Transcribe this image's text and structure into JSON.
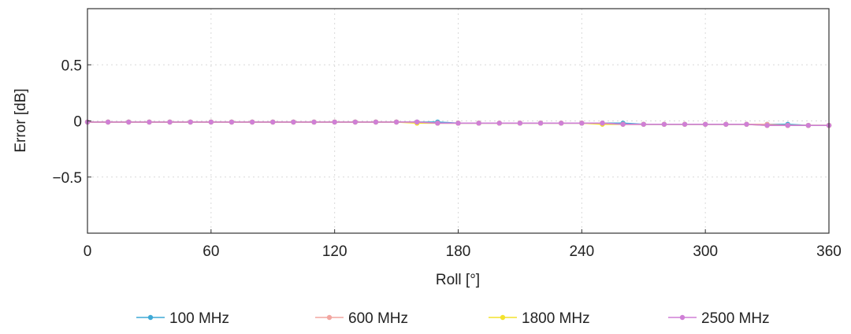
{
  "chart_data": {
    "type": "line",
    "xlabel": "Roll [°]",
    "ylabel": "Error [dB]",
    "xlim": [
      0,
      360
    ],
    "ylim": [
      -1,
      1
    ],
    "x_ticks": [
      0,
      60,
      120,
      180,
      240,
      300,
      360
    ],
    "x_tick_labels": [
      "0",
      "60",
      "120",
      "180",
      "240",
      "300",
      "360"
    ],
    "y_ticks": [
      0.5,
      0,
      -0.5
    ],
    "y_tick_labels": [
      "0.5",
      "0",
      "−0.5"
    ],
    "grid": true,
    "legend_position": "bottom",
    "x": [
      0,
      10,
      20,
      30,
      40,
      50,
      60,
      70,
      80,
      90,
      100,
      110,
      120,
      130,
      140,
      150,
      160,
      170,
      180,
      190,
      200,
      210,
      220,
      230,
      240,
      250,
      260,
      270,
      280,
      290,
      300,
      310,
      320,
      330,
      340,
      350,
      360
    ],
    "series": [
      {
        "name": "100 MHz",
        "color": "#3fa9d6",
        "values": [
          -0.01,
          -0.01,
          -0.01,
          -0.01,
          -0.01,
          -0.01,
          -0.01,
          -0.01,
          -0.01,
          -0.01,
          -0.01,
          -0.01,
          -0.01,
          -0.01,
          -0.01,
          -0.01,
          -0.01,
          -0.01,
          -0.02,
          -0.02,
          -0.02,
          -0.02,
          -0.02,
          -0.02,
          -0.02,
          -0.02,
          -0.02,
          -0.03,
          -0.03,
          -0.03,
          -0.03,
          -0.03,
          -0.03,
          -0.03,
          -0.03,
          -0.04,
          -0.04
        ]
      },
      {
        "name": "600 MHz",
        "color": "#f2a6a0",
        "values": [
          -0.01,
          -0.01,
          -0.01,
          -0.01,
          -0.01,
          -0.01,
          -0.01,
          -0.01,
          -0.01,
          -0.01,
          -0.01,
          -0.01,
          -0.01,
          -0.01,
          -0.01,
          -0.01,
          -0.01,
          -0.02,
          -0.02,
          -0.02,
          -0.02,
          -0.02,
          -0.02,
          -0.02,
          -0.02,
          -0.02,
          -0.03,
          -0.03,
          -0.03,
          -0.03,
          -0.03,
          -0.03,
          -0.03,
          -0.03,
          -0.04,
          -0.04,
          -0.04
        ]
      },
      {
        "name": "1800 MHz",
        "color": "#f3e22c",
        "values": [
          -0.01,
          -0.01,
          -0.01,
          -0.01,
          -0.01,
          -0.01,
          -0.01,
          -0.01,
          -0.01,
          -0.01,
          -0.01,
          -0.01,
          -0.01,
          -0.01,
          -0.01,
          -0.01,
          -0.02,
          -0.02,
          -0.02,
          -0.02,
          -0.02,
          -0.02,
          -0.02,
          -0.02,
          -0.02,
          -0.03,
          -0.03,
          -0.03,
          -0.03,
          -0.03,
          -0.03,
          -0.03,
          -0.03,
          -0.04,
          -0.04,
          -0.04,
          -0.04
        ]
      },
      {
        "name": "2500 MHz",
        "color": "#cf7fd6",
        "values": [
          -0.01,
          -0.01,
          -0.01,
          -0.01,
          -0.01,
          -0.01,
          -0.01,
          -0.01,
          -0.01,
          -0.01,
          -0.01,
          -0.01,
          -0.01,
          -0.01,
          -0.01,
          -0.01,
          -0.01,
          -0.02,
          -0.02,
          -0.02,
          -0.02,
          -0.02,
          -0.02,
          -0.02,
          -0.02,
          -0.02,
          -0.03,
          -0.03,
          -0.03,
          -0.03,
          -0.03,
          -0.03,
          -0.03,
          -0.04,
          -0.04,
          -0.04,
          -0.04
        ]
      }
    ]
  }
}
